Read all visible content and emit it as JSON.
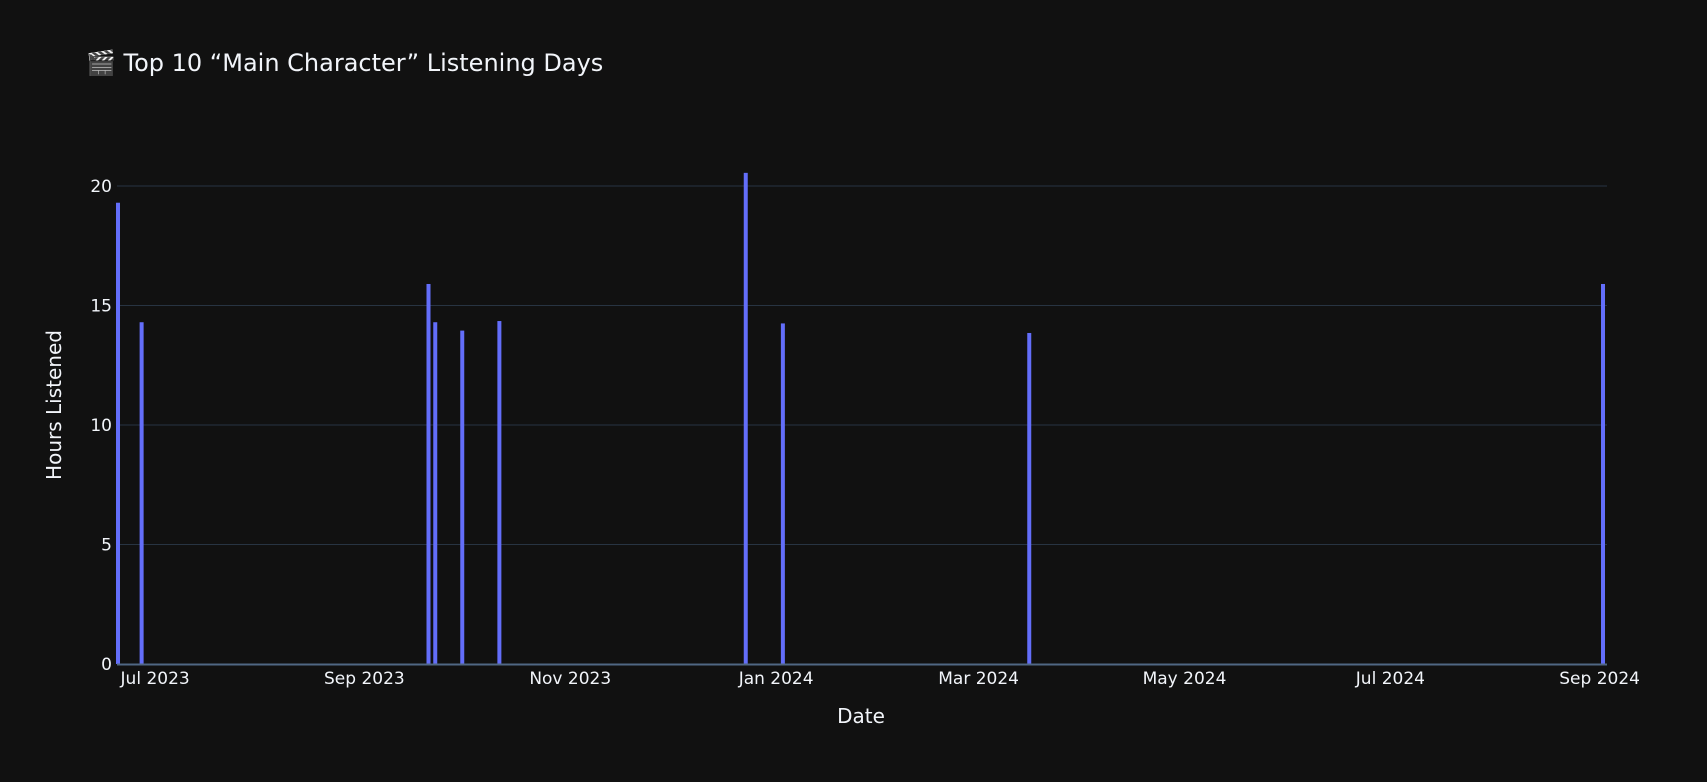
{
  "chart_data": {
    "type": "bar",
    "title": "🎬 Top 10 “Main Character” Listening Days",
    "xlabel": "Date",
    "ylabel": "Hours Listened",
    "x_axis_type": "date",
    "ylim": [
      0,
      22
    ],
    "y_ticks": [
      0,
      5,
      10,
      15,
      20
    ],
    "x_ticks": [
      {
        "date": "2023-07-01",
        "label": "Jul 2023"
      },
      {
        "date": "2023-09-01",
        "label": "Sep 2023"
      },
      {
        "date": "2023-11-01",
        "label": "Nov 2023"
      },
      {
        "date": "2024-01-01",
        "label": "Jan 2024"
      },
      {
        "date": "2024-03-01",
        "label": "Mar 2024"
      },
      {
        "date": "2024-05-01",
        "label": "May 2024"
      },
      {
        "date": "2024-07-01",
        "label": "Jul 2024"
      },
      {
        "date": "2024-09-01",
        "label": "Sep 2024"
      }
    ],
    "x": [
      "2023-06-20",
      "2023-06-27",
      "2023-09-20",
      "2023-09-22",
      "2023-09-30",
      "2023-10-11",
      "2023-12-23",
      "2024-01-03",
      "2024-03-16",
      "2024-09-02"
    ],
    "values": [
      19.3,
      14.3,
      15.9,
      14.3,
      13.95,
      14.35,
      20.55,
      14.25,
      13.85,
      15.9
    ],
    "grid": true,
    "colors": {
      "background": "#111111",
      "bar": "#636efa",
      "grid": "#283442",
      "axis_line": "#506784",
      "text": "#f2f5fa"
    }
  }
}
